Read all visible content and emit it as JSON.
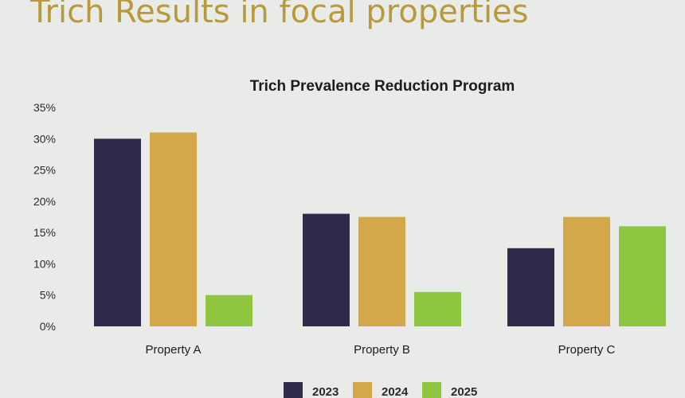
{
  "slide": {
    "title": "Trich Results in focal properties"
  },
  "colors": {
    "background": "#e9ebe9",
    "title_gold": "#b89a3a"
  },
  "chart_data": {
    "type": "bar",
    "title": "Trich Prevalence Reduction Program",
    "xlabel": "",
    "ylabel": "",
    "categories": [
      "Property A",
      "Property B",
      "Property C"
    ],
    "series": [
      {
        "name": "2023",
        "color": "#2e2a4a",
        "values": [
          30,
          18,
          12.5
        ]
      },
      {
        "name": "2024",
        "color": "#d3a84a",
        "values": [
          31,
          17.5,
          17.5
        ]
      },
      {
        "name": "2025",
        "color": "#8ec63f",
        "values": [
          5,
          5.5,
          16
        ]
      }
    ],
    "ylim": [
      0,
      35
    ],
    "yticks": [
      "0%",
      "5%",
      "10%",
      "15%",
      "20%",
      "25%",
      "30%",
      "35%"
    ],
    "grid": false,
    "legend_position": "bottom"
  }
}
